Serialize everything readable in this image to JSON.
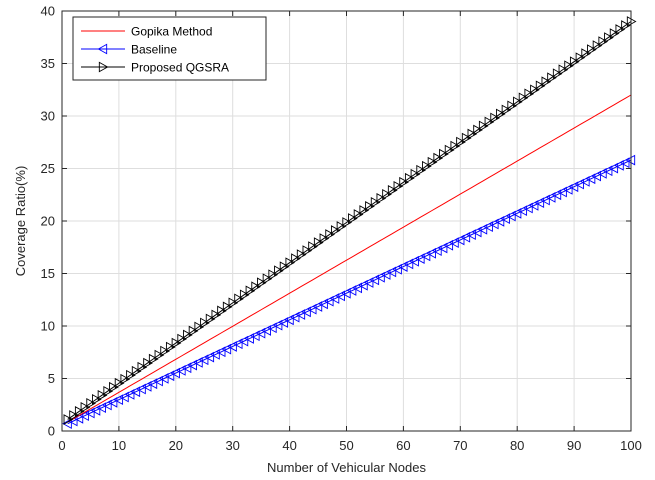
{
  "chart_data": {
    "type": "line",
    "title": "",
    "xlabel": "Number of Vehicular Nodes",
    "ylabel": "Coverage Ratio(%)",
    "xlim": [
      0,
      100
    ],
    "ylim": [
      0,
      40
    ],
    "xticks": [
      0,
      10,
      20,
      30,
      40,
      50,
      60,
      70,
      80,
      90,
      100
    ],
    "yticks": [
      0,
      5,
      10,
      15,
      20,
      25,
      30,
      35,
      40
    ],
    "grid": true,
    "legend_position": "top-left",
    "x": {
      "start": 1,
      "end": 100,
      "step": 1
    },
    "series": [
      {
        "name": "Gopika Method",
        "y_start": 0.85,
        "y_end": 32,
        "color": "#ff0000",
        "marker": "none"
      },
      {
        "name": "Baseline",
        "y_start": 0.7,
        "y_end": 25.8,
        "color": "#0000ff",
        "marker": "triangle-left"
      },
      {
        "name": "Proposed QGSRA",
        "y_start": 1.1,
        "y_end": 39,
        "color": "#000000",
        "marker": "triangle-right"
      }
    ]
  }
}
